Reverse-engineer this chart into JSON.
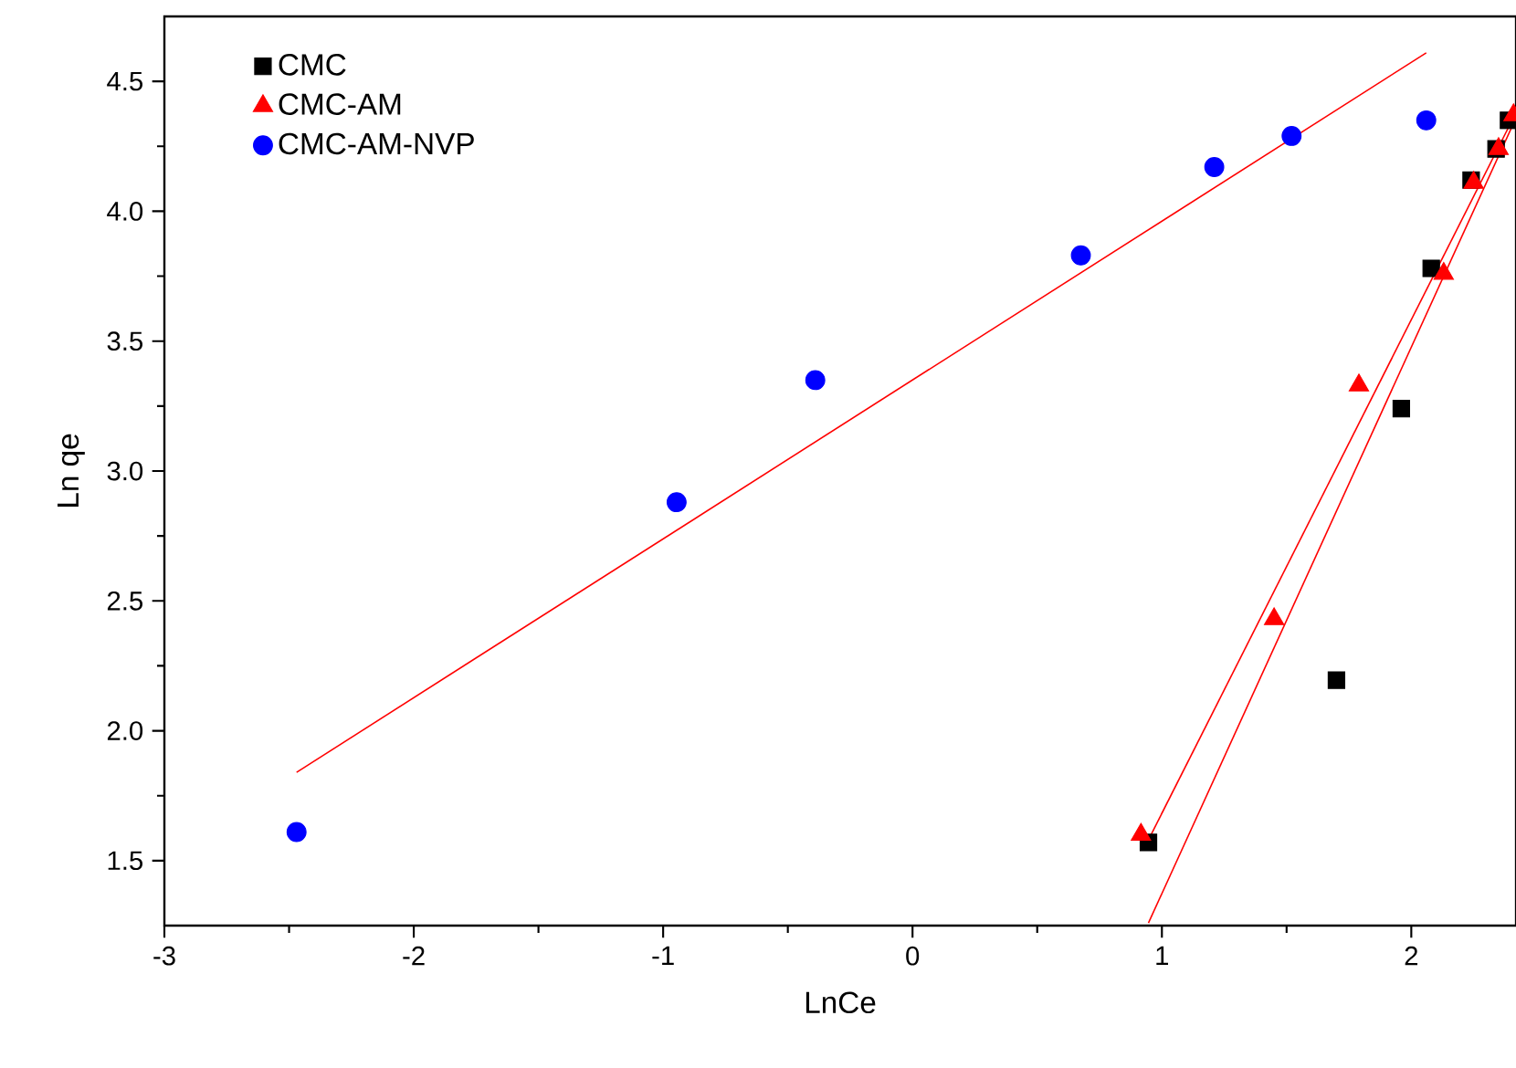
{
  "chart_data": {
    "type": "scatter",
    "xlabel": "LnCe",
    "ylabel": "Ln qe",
    "xlim": [
      -3,
      2.42
    ],
    "ylim": [
      1.25,
      4.75
    ],
    "xticks": [
      -3,
      -2,
      -1,
      0,
      1,
      2
    ],
    "yticks": [
      1.5,
      {
        "value": 2.0,
        "label": "2.0"
      },
      2.5,
      {
        "value": 3.0,
        "label": "3.0"
      },
      3.5,
      {
        "value": 4.0,
        "label": "4.0"
      },
      4.5
    ],
    "legend": "top left",
    "grid": false,
    "series": [
      {
        "name": "CMC",
        "color": "#000000",
        "marker": "square",
        "x": [
          0.946,
          1.7,
          1.96,
          2.08,
          2.24,
          2.34,
          2.39
        ],
        "values": [
          1.57,
          2.195,
          3.24,
          3.78,
          4.12,
          4.24,
          4.35
        ]
      },
      {
        "name": "CMC-AM",
        "color": "#ff0000",
        "marker": "triangle",
        "x": [
          0.916,
          1.45,
          1.79,
          2.13,
          2.25,
          2.35,
          2.41
        ],
        "values": [
          1.6,
          2.43,
          3.33,
          3.76,
          4.11,
          4.24,
          4.37
        ]
      },
      {
        "name": "CMC-AM-NVP",
        "color": "#0000ff",
        "marker": "circle",
        "x": [
          -2.47,
          -0.946,
          -0.39,
          0.675,
          1.21,
          1.52,
          2.06
        ],
        "values": [
          1.61,
          2.88,
          3.35,
          3.83,
          4.17,
          4.29,
          4.35
        ]
      },
      {
        "type": "line",
        "color": "#ff0000",
        "x": [
          -2.47,
          2.06
        ],
        "values": [
          1.84,
          4.61
        ]
      },
      {
        "type": "line",
        "color": "#ff0000",
        "x": [
          0.946,
          2.42
        ],
        "values": [
          1.58,
          4.38
        ]
      },
      {
        "type": "line",
        "color": "#ff0000",
        "x": [
          0.946,
          2.42
        ],
        "values": [
          1.26,
          4.36
        ]
      }
    ]
  }
}
